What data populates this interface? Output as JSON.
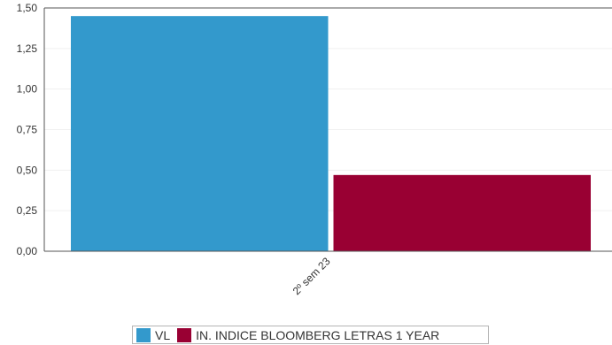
{
  "chart_data": {
    "type": "bar",
    "categories": [
      "2º sem 23"
    ],
    "series": [
      {
        "name": "VL",
        "values": [
          1.45
        ],
        "color": "#3399cc"
      },
      {
        "name": "IN. INDICE BLOOMBERG LETRAS 1 YEAR",
        "values": [
          0.47
        ],
        "color": "#990033"
      }
    ],
    "ylim": [
      0,
      1.5
    ],
    "yticks": [
      "0,00",
      "0,25",
      "0,50",
      "0,75",
      "1,00",
      "1,25",
      "1,50"
    ],
    "xlabel": "",
    "ylabel": "",
    "grid": true,
    "legend_position": "bottom"
  }
}
